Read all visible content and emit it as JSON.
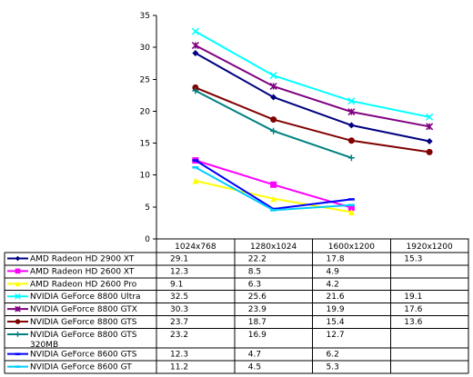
{
  "chart_data": {
    "type": "line",
    "title": "",
    "xlabel": "",
    "ylabel": "",
    "categories": [
      "1024x768",
      "1280x1024",
      "1600x1200",
      "1920x1200"
    ],
    "ylim": [
      0,
      35
    ],
    "yticks": [
      0,
      5,
      10,
      15,
      20,
      25,
      30,
      35
    ],
    "ytick_labels": [
      "0",
      "5",
      "10",
      "15",
      "20",
      "25",
      "30",
      "35"
    ],
    "grid": false,
    "legend": "table-below",
    "series": [
      {
        "name": "AMD Radeon HD 2900 XT",
        "color": "#000080",
        "marker": "diamond",
        "values": [
          29.1,
          22.2,
          17.8,
          15.3
        ],
        "labels": [
          "29.1",
          "22.2",
          "17.8",
          "15.3"
        ]
      },
      {
        "name": "AMD Radeon HD 2600 XT",
        "color": "#ff00ff",
        "marker": "square",
        "values": [
          12.3,
          8.5,
          4.9,
          null
        ],
        "labels": [
          "12.3",
          "8.5",
          "4.9",
          ""
        ]
      },
      {
        "name": "AMD Radeon HD 2600 Pro",
        "color": "#ffff00",
        "marker": "triangle",
        "values": [
          9.1,
          6.3,
          4.2,
          null
        ],
        "labels": [
          "9.1",
          "6.3",
          "4.2",
          ""
        ]
      },
      {
        "name": "NVIDIA GeForce 8800 Ultra",
        "color": "#00ffff",
        "marker": "x",
        "values": [
          32.5,
          25.6,
          21.6,
          19.1
        ],
        "labels": [
          "32.5",
          "25.6",
          "21.6",
          "19.1"
        ]
      },
      {
        "name": "NVIDIA GeForce 8800 GTX",
        "color": "#800080",
        "marker": "star",
        "values": [
          30.3,
          23.9,
          19.9,
          17.6
        ],
        "labels": [
          "30.3",
          "23.9",
          "19.9",
          "17.6"
        ]
      },
      {
        "name": "NVIDIA GeForce 8800 GTS",
        "color": "#800000",
        "marker": "circle",
        "values": [
          23.7,
          18.7,
          15.4,
          13.6
        ],
        "labels": [
          "23.7",
          "18.7",
          "15.4",
          "13.6"
        ]
      },
      {
        "name": "NVIDIA GeForce 8800 GTS 320MB",
        "color": "#008080",
        "marker": "plus",
        "values": [
          23.2,
          16.9,
          12.7,
          null
        ],
        "labels": [
          "23.2",
          "16.9",
          "12.7",
          ""
        ]
      },
      {
        "name": "NVIDIA GeForce 8600 GTS",
        "color": "#0000ff",
        "marker": "dash",
        "values": [
          12.3,
          4.7,
          6.2,
          null
        ],
        "labels": [
          "12.3",
          "4.7",
          "6.2",
          ""
        ]
      },
      {
        "name": "NVIDIA GeForce 8600 GT",
        "color": "#00ccff",
        "marker": "dash",
        "values": [
          11.2,
          4.5,
          5.3,
          null
        ],
        "labels": [
          "11.2",
          "4.5",
          "5.3",
          ""
        ]
      }
    ]
  }
}
